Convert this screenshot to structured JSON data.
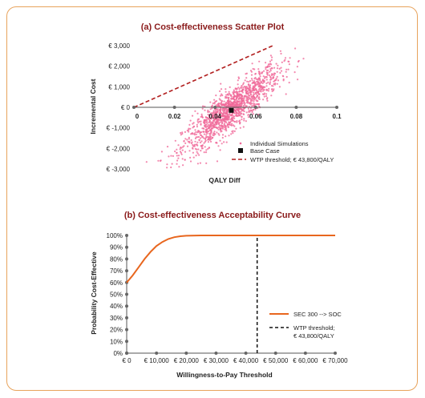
{
  "chart_data": [
    {
      "type": "scatter",
      "title": "(a) Cost-effectiveness Scatter Plot",
      "xlabel": "QALY Diff",
      "ylabel": "Incremental Cost",
      "xlim": [
        0,
        0.1
      ],
      "ylim": [
        -3000,
        3000
      ],
      "x_ticks": [
        "0",
        "0.02",
        "0.04",
        "0.06",
        "0.08",
        "0.1"
      ],
      "y_ticks": [
        "€ 3,000",
        "€ 2,000",
        "€ 1,000",
        "€ 0",
        "€ -1,000",
        "€ -2,000",
        "€ -3,000"
      ],
      "series": [
        {
          "name": "Individual Simulations",
          "kind": "cloud",
          "color": "#f06a9a",
          "center": [
            0.048,
            -100
          ],
          "x_spread": 0.024,
          "cost_per_qaly": 75000,
          "y_noise": 500
        },
        {
          "name": "Base Case",
          "kind": "point",
          "color": "#111111",
          "x": 0.048,
          "y": -150
        },
        {
          "name": "WTP threshold; € 43,800/QALY",
          "kind": "line",
          "color": "#b22020",
          "x": [
            0,
            0.0685
          ],
          "y": [
            0,
            3000
          ]
        }
      ],
      "legend": [
        "Individual Simulations",
        "Base Case",
        "WTP threshold; € 43,800/QALY"
      ],
      "legend_position": "bottom-right"
    },
    {
      "type": "line",
      "title": "(b) Cost-effectiveness Acceptability Curve",
      "xlabel": "Willingness-to-Pay Threshold",
      "ylabel": "Probability Cost-Effective",
      "xlim": [
        0,
        70000
      ],
      "ylim": [
        0,
        100
      ],
      "x_ticks": [
        "€ 0",
        "€ 10,000",
        "€ 20,000",
        "€ 30,000",
        "€ 40,000",
        "€ 50,000",
        "€ 60,000",
        "€ 70,000"
      ],
      "y_ticks": [
        "100%",
        "90%",
        "80%",
        "70%",
        "60%",
        "50%",
        "40%",
        "30%",
        "20%",
        "10%",
        "0%"
      ],
      "series": [
        {
          "name": "SEC 300 --> SOC",
          "color": "#e8661e",
          "x": [
            0,
            2000,
            4000,
            6000,
            8000,
            10000,
            12000,
            14000,
            16000,
            18000,
            20000,
            25000,
            30000,
            70000
          ],
          "y": [
            60,
            66,
            73,
            80,
            86,
            91,
            94.5,
            97,
            98.5,
            99.3,
            99.7,
            100,
            100,
            100
          ]
        },
        {
          "name": "WTP threshold; € 43,800/QALY",
          "color": "#111111",
          "x": [
            43800,
            43800
          ],
          "y": [
            0,
            100
          ]
        }
      ],
      "legend": [
        "SEC 300 --> SOC",
        "WTP threshold;",
        "€ 43,800/QALY"
      ],
      "legend_position": "right"
    }
  ]
}
